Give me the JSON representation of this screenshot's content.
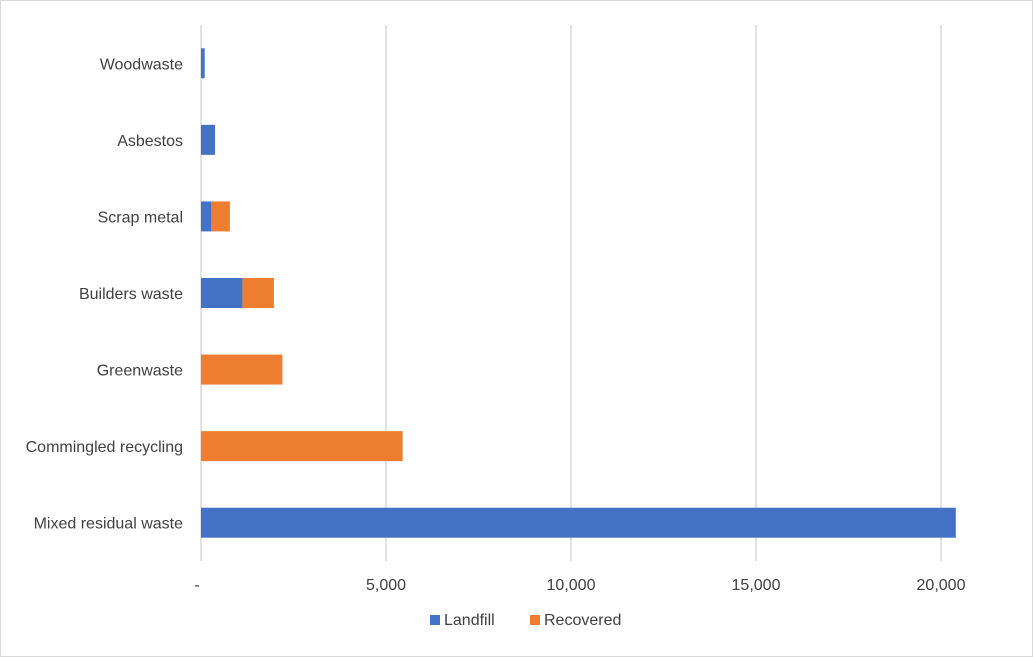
{
  "chart_data": {
    "type": "bar",
    "orientation": "horizontal",
    "stacked": true,
    "title": "",
    "xlabel": "",
    "ylabel": "",
    "categories": [
      "Woodwaste",
      "Asbestos",
      "Scrap metal",
      "Builders waste",
      "Greenwaste",
      "Commingled recycling",
      "Mixed residual waste"
    ],
    "series": [
      {
        "name": "Landfill",
        "color": "#4472C4",
        "values": [
          100,
          380,
          280,
          1120,
          0,
          0,
          20400
        ]
      },
      {
        "name": "Recovered",
        "color": "#ED7D31",
        "values": [
          0,
          0,
          500,
          850,
          2200,
          5450,
          0
        ]
      }
    ],
    "xlim": [
      0,
      20000
    ],
    "xticks": [
      {
        "value": 0,
        "label": "-"
      },
      {
        "value": 5000,
        "label": "5,000"
      },
      {
        "value": 10000,
        "label": "10,000"
      },
      {
        "value": 15000,
        "label": "15,000"
      },
      {
        "value": 20000,
        "label": "20,000"
      }
    ],
    "grid": true,
    "legend_position": "bottom",
    "colors": {
      "gridline": "#d9d9d9",
      "axis": "#d9d9d9",
      "text": "#404040"
    }
  }
}
